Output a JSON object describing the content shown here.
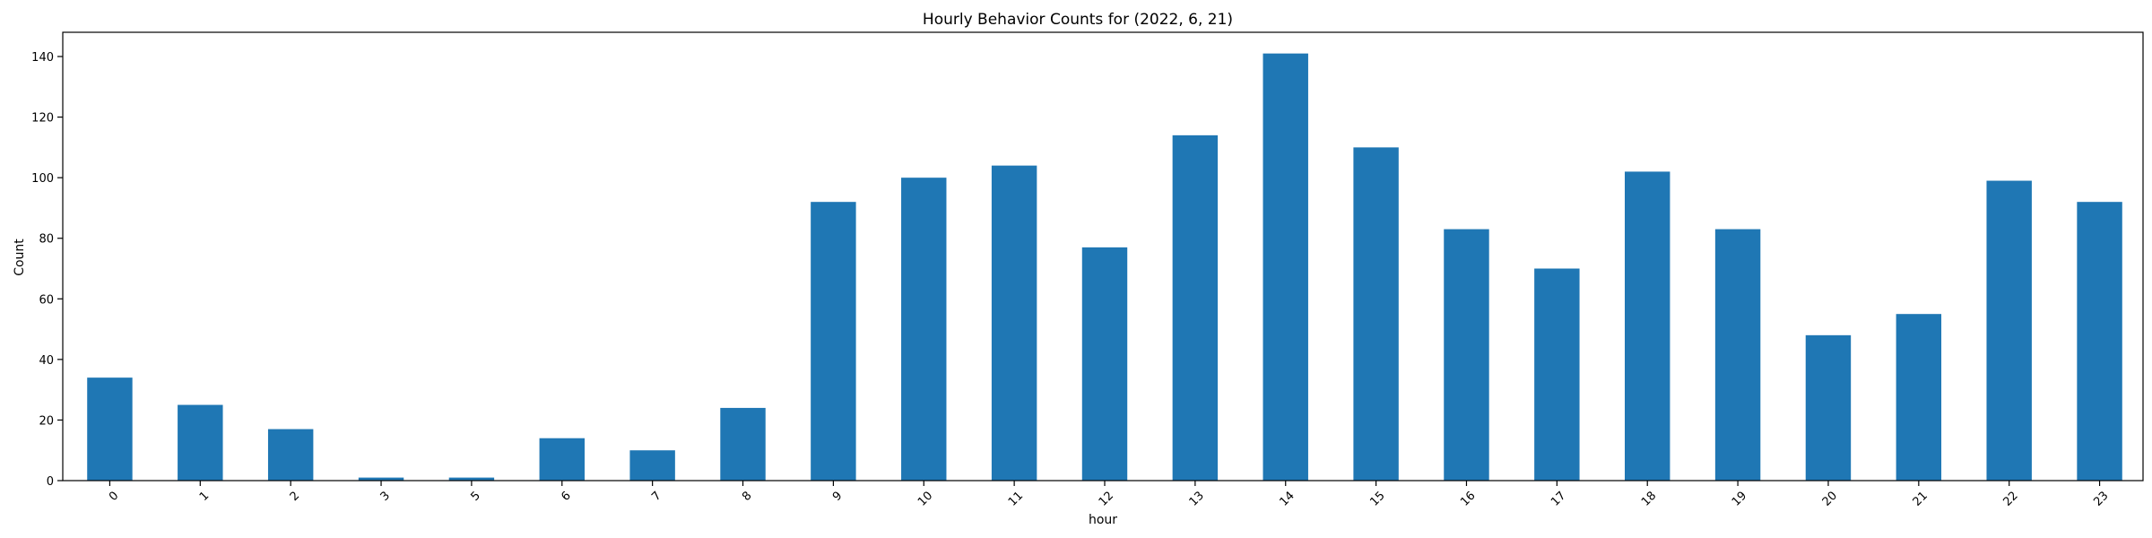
{
  "chart_data": {
    "type": "bar",
    "title": "Hourly Behavior Counts for (2022, 6, 21)",
    "xlabel": "hour",
    "ylabel": "Count",
    "categories": [
      "0",
      "1",
      "2",
      "3",
      "5",
      "6",
      "7",
      "8",
      "9",
      "10",
      "11",
      "12",
      "13",
      "14",
      "15",
      "16",
      "17",
      "18",
      "19",
      "20",
      "21",
      "22",
      "23"
    ],
    "values": [
      34,
      25,
      17,
      1,
      1,
      14,
      10,
      24,
      92,
      100,
      104,
      77,
      114,
      141,
      110,
      83,
      70,
      102,
      83,
      48,
      55,
      99,
      92
    ],
    "ylim": [
      0,
      148
    ],
    "yticks": [
      "0",
      "20",
      "40",
      "60",
      "80",
      "100",
      "120",
      "140"
    ],
    "bar_color": "#1f77b4",
    "grid": false,
    "legend": "none"
  }
}
